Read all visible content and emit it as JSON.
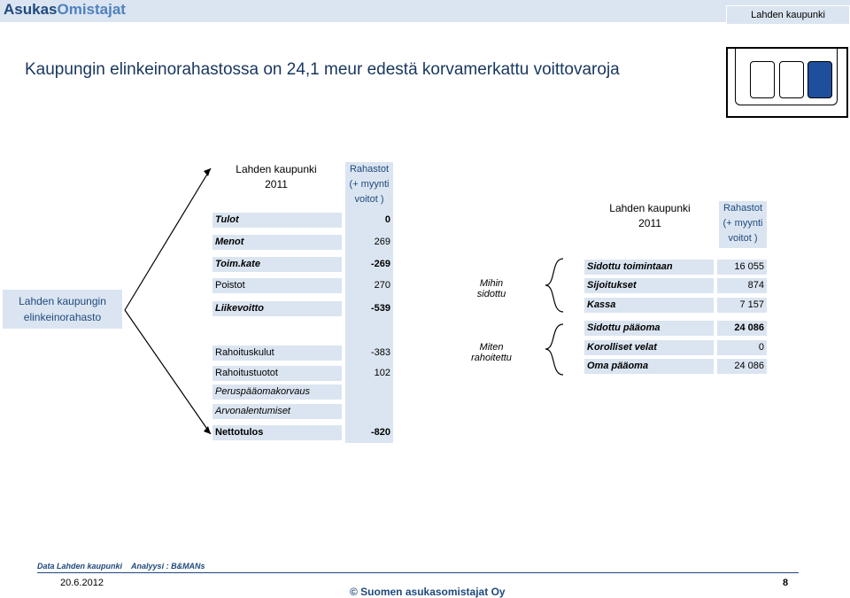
{
  "header": {
    "logo_part1": "Asukas",
    "logo_part2": "Omistajat",
    "city_tag": "Lahden kaupunki"
  },
  "title": "Kaupungin elinkeinorahastossa on 24,1 meur edestä korvamerkattu voittovaroja",
  "side_label": {
    "line1": "Lahden kaupungin",
    "line2": "elinkeinorahasto"
  },
  "left_table": {
    "col1_header_line1": "Lahden kaupunki",
    "col1_header_line2": "2011",
    "col2_header_line1": "Rahastot",
    "col2_header_line2": "(+ myynti",
    "col2_header_line3": "voitot )",
    "rows": [
      {
        "label": "Tulot",
        "value": "0"
      },
      {
        "label": "Menot",
        "value": "269"
      },
      {
        "label": "Toim.kate",
        "value": "-269"
      },
      {
        "label": "Poistot",
        "value": "270"
      },
      {
        "label": "Liikevoitto",
        "value": "-539"
      },
      {
        "label": "Rahoituskulut",
        "value": "-383"
      },
      {
        "label": "Rahoitustuotot",
        "value": "102"
      },
      {
        "label": "Peruspääomakorvaus",
        "value": ""
      },
      {
        "label": "Arvonalentumiset",
        "value": ""
      },
      {
        "label": "Nettotulos",
        "value": "-820"
      }
    ]
  },
  "questions": {
    "q1_line1": "Mihin",
    "q1_line2": "sidottu",
    "q2_line1": "Miten",
    "q2_line2": "rahoitettu"
  },
  "right_table": {
    "col1_header_line1": "Lahden kaupunki",
    "col1_header_line2": "2011",
    "col2_header_line1": "Rahastot",
    "col2_header_line2": "(+ myynti",
    "col2_header_line3": "voitot )",
    "rows": [
      {
        "label": "Sidottu toimintaan",
        "value": "16 055"
      },
      {
        "label": "Sijoitukset",
        "value": "874"
      },
      {
        "label": "Kassa",
        "value": "7 157"
      },
      {
        "label": "Sidottu pääoma",
        "value": "24 086"
      },
      {
        "label": "Korolliset velat",
        "value": "0"
      },
      {
        "label": "Oma pääoma",
        "value": "24 086"
      }
    ]
  },
  "footer": {
    "data_source": "Data Lahden kaupunki",
    "analysis": "Analyysi : B&MANs",
    "date": "20.6.2012",
    "copyright": "© Suomen asukasomistajat Oy",
    "page": "8"
  }
}
